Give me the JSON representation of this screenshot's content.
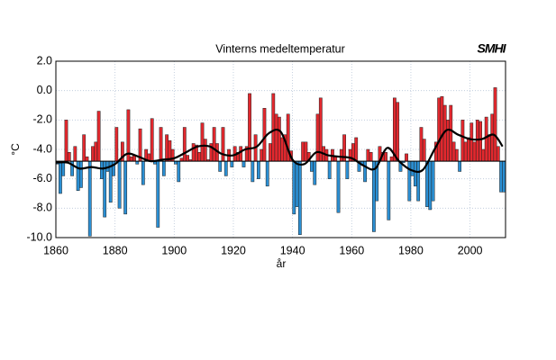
{
  "chart_data": {
    "type": "bar",
    "title": "Vinterns medeltemperatur",
    "logo": "SMHI",
    "xlabel": "år",
    "ylabel": "°C",
    "x": [
      1860,
      1861,
      1862,
      1863,
      1864,
      1865,
      1866,
      1867,
      1868,
      1869,
      1870,
      1871,
      1872,
      1873,
      1874,
      1875,
      1876,
      1877,
      1878,
      1879,
      1880,
      1881,
      1882,
      1883,
      1884,
      1885,
      1886,
      1887,
      1888,
      1889,
      1890,
      1891,
      1892,
      1893,
      1894,
      1895,
      1896,
      1897,
      1898,
      1899,
      1900,
      1901,
      1902,
      1903,
      1904,
      1905,
      1906,
      1907,
      1908,
      1909,
      1910,
      1911,
      1912,
      1913,
      1914,
      1915,
      1916,
      1917,
      1918,
      1919,
      1920,
      1921,
      1922,
      1923,
      1924,
      1925,
      1926,
      1927,
      1928,
      1929,
      1930,
      1931,
      1932,
      1933,
      1934,
      1935,
      1936,
      1937,
      1938,
      1939,
      1940,
      1941,
      1942,
      1943,
      1944,
      1945,
      1946,
      1947,
      1948,
      1949,
      1950,
      1951,
      1952,
      1953,
      1954,
      1955,
      1956,
      1957,
      1958,
      1959,
      1960,
      1961,
      1962,
      1963,
      1964,
      1965,
      1966,
      1967,
      1968,
      1969,
      1970,
      1971,
      1972,
      1973,
      1974,
      1975,
      1976,
      1977,
      1978,
      1979,
      1980,
      1981,
      1982,
      1983,
      1984,
      1985,
      1986,
      1987,
      1988,
      1989,
      1990,
      1991,
      1992,
      1993,
      1994,
      1995,
      1996,
      1997,
      1998,
      1999,
      2000,
      2001,
      2002,
      2003,
      2004,
      2005,
      2006,
      2007,
      2008,
      2009,
      2010,
      2011
    ],
    "values": [
      -5.0,
      -7.0,
      -5.8,
      -2.0,
      -4.2,
      -5.8,
      -3.8,
      -6.8,
      -6.6,
      -3.0,
      -4.5,
      -9.9,
      -3.8,
      -3.5,
      -1.4,
      -6.0,
      -8.6,
      -5.5,
      -7.6,
      -5.8,
      -2.5,
      -8.0,
      -3.5,
      -8.4,
      -1.3,
      -4.5,
      -4.4,
      -5.0,
      -2.6,
      -6.4,
      -4.0,
      -4.3,
      -1.9,
      -5.0,
      -9.3,
      -2.5,
      -5.8,
      -3.0,
      -3.4,
      -4.0,
      -5.0,
      -6.2,
      -4.6,
      -2.5,
      -4.4,
      -4.7,
      -3.6,
      -3.7,
      -4.2,
      -2.2,
      -3.3,
      -4.7,
      -3.6,
      -2.5,
      -3.6,
      -5.5,
      -2.5,
      -5.8,
      -4.0,
      -5.2,
      -3.8,
      -4.2,
      -3.8,
      -5.2,
      -3.8,
      -0.2,
      -6.2,
      -3.0,
      -6.0,
      -4.0,
      -1.2,
      -6.5,
      -3.6,
      -0.2,
      -1.6,
      -1.8,
      -3.2,
      -3.0,
      -1.6,
      -4.1,
      -8.4,
      -7.9,
      -9.8,
      -3.5,
      -3.5,
      -4.2,
      -5.5,
      -6.4,
      -1.6,
      -0.5,
      -3.8,
      -4.0,
      -6.0,
      -4.0,
      -4.5,
      -8.3,
      -4.0,
      -3.0,
      -6.0,
      -4.0,
      -3.6,
      -3.2,
      -5.5,
      -5.0,
      -6.2,
      -4.0,
      -4.2,
      -9.6,
      -7.5,
      -3.8,
      -4.2,
      -4.2,
      -8.8,
      -4.5,
      -0.5,
      -0.8,
      -5.5,
      -4.9,
      -4.3,
      -7.5,
      -5.8,
      -6.5,
      -7.5,
      -2.5,
      -3.3,
      -7.9,
      -8.1,
      -7.5,
      -3.5,
      -0.5,
      -0.4,
      -1.0,
      -2.0,
      -1.0,
      -3.5,
      -4.0,
      -5.5,
      -2.0,
      -3.5,
      -3.2,
      -2.2,
      -3.5,
      -2.0,
      -2.1,
      -4.0,
      -1.8,
      -3.0,
      -1.6,
      0.2,
      -3.8,
      -6.9,
      -6.9
    ],
    "baseline": -4.8,
    "color_above": "#e3282e",
    "color_below": "#2b8fd3",
    "trend_x": [
      1860,
      1864,
      1868,
      1872,
      1876,
      1880,
      1884,
      1888,
      1892,
      1896,
      1900,
      1904,
      1908,
      1912,
      1916,
      1920,
      1924,
      1928,
      1932,
      1936,
      1940,
      1944,
      1948,
      1952,
      1956,
      1960,
      1964,
      1968,
      1972,
      1976,
      1980,
      1984,
      1988,
      1992,
      1996,
      2000,
      2004,
      2008,
      2011
    ],
    "trend_values": [
      -4.9,
      -4.9,
      -5.3,
      -5.2,
      -5.3,
      -5.0,
      -4.3,
      -4.5,
      -4.8,
      -4.7,
      -4.6,
      -4.2,
      -3.8,
      -3.8,
      -4.3,
      -4.4,
      -4.0,
      -3.8,
      -2.9,
      -2.8,
      -4.7,
      -5.0,
      -4.2,
      -4.4,
      -4.5,
      -4.6,
      -5.1,
      -5.3,
      -3.9,
      -4.8,
      -5.4,
      -5.4,
      -4.0,
      -2.7,
      -3.0,
      -3.3,
      -3.3,
      -3.0,
      -3.8
    ],
    "trend_color": "#000000",
    "xlim": [
      1860,
      2012
    ],
    "ylim": [
      -10,
      2
    ],
    "xticks": [
      1860,
      1880,
      1900,
      1920,
      1940,
      1960,
      1980,
      2000
    ],
    "yticks": [
      {
        "value": -10,
        "label": "-10.0"
      },
      {
        "value": -8,
        "label": "-8.0"
      },
      {
        "value": -6,
        "label": "-6.0"
      },
      {
        "value": -4,
        "label": "-4.0"
      },
      {
        "value": -2,
        "label": "-2.0"
      },
      {
        "value": 0,
        "label": "0.0"
      },
      {
        "value": 2,
        "label": "2.0"
      }
    ],
    "grid": true
  }
}
